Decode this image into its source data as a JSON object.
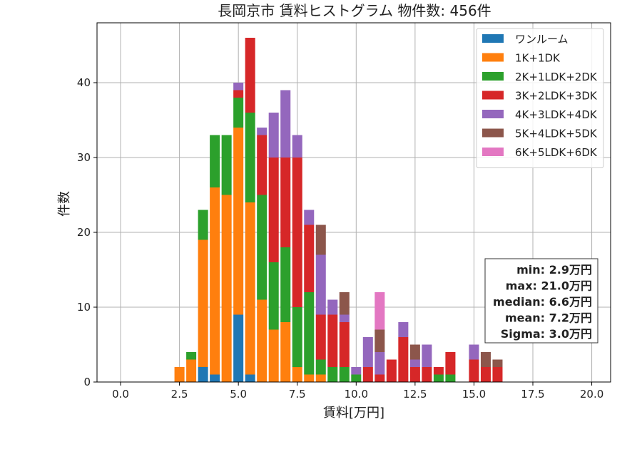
{
  "chart_data": {
    "type": "bar",
    "stacked": true,
    "title": "長岡京市 賃料ヒストグラム  物件数: 456件",
    "xlabel": "賃料[万円]",
    "ylabel": "件数",
    "xlim": [
      -1.0,
      20.8
    ],
    "ylim": [
      0,
      48
    ],
    "xticks": [
      "0.0",
      "2.5",
      "5.0",
      "7.5",
      "10.0",
      "12.5",
      "15.0",
      "17.5",
      "20.0"
    ],
    "xtick_values": [
      0,
      2.5,
      5,
      7.5,
      10,
      12.5,
      15,
      17.5,
      20
    ],
    "yticks": [
      "0",
      "10",
      "20",
      "30",
      "40"
    ],
    "ytick_values": [
      0,
      10,
      20,
      30,
      40
    ],
    "grid": true,
    "legend_position": "top-right",
    "bin_width": 0.5,
    "x": [
      2.5,
      3.0,
      3.5,
      4.0,
      4.5,
      5.0,
      5.5,
      6.0,
      6.5,
      7.0,
      7.5,
      8.0,
      8.5,
      9.0,
      9.5,
      10.0,
      10.5,
      11.0,
      11.5,
      12.0,
      12.5,
      13.0,
      13.5,
      14.0,
      14.5,
      15.0,
      15.5,
      16.0
    ],
    "series": [
      {
        "name": "ワンルーム",
        "color": "#1f77b4",
        "values": [
          0,
          0,
          2,
          1,
          0,
          9,
          1,
          0,
          0,
          0,
          0,
          0,
          0,
          0,
          0,
          0,
          0,
          0,
          0,
          0,
          0,
          0,
          0,
          0,
          0,
          0,
          0,
          0
        ]
      },
      {
        "name": "1K+1DK",
        "color": "#ff7f0e",
        "values": [
          2,
          3,
          17,
          25,
          25,
          25,
          23,
          11,
          7,
          8,
          2,
          1,
          1,
          0,
          0,
          0,
          0,
          0,
          0,
          0,
          0,
          0,
          0,
          0,
          0,
          0,
          0,
          0
        ]
      },
      {
        "name": "2K+1LDK+2DK",
        "color": "#2ca02c",
        "values": [
          0,
          1,
          4,
          7,
          8,
          4,
          12,
          14,
          9,
          10,
          8,
          11,
          2,
          2,
          2,
          1,
          0,
          0,
          0,
          0,
          0,
          0,
          1,
          1,
          0,
          0,
          0,
          0
        ]
      },
      {
        "name": "3K+2LDK+3DK",
        "color": "#d62728",
        "values": [
          0,
          0,
          0,
          0,
          0,
          1,
          10,
          8,
          14,
          12,
          20,
          9,
          6,
          7,
          6,
          0,
          2,
          1,
          3,
          6,
          2,
          2,
          1,
          3,
          0,
          3,
          2,
          2
        ]
      },
      {
        "name": "4K+3LDK+4DK",
        "color": "#9467bd",
        "values": [
          0,
          0,
          0,
          0,
          0,
          1,
          0,
          1,
          6,
          9,
          3,
          2,
          8,
          2,
          1,
          1,
          4,
          3,
          0,
          2,
          1,
          3,
          0,
          0,
          0,
          2,
          0,
          0
        ]
      },
      {
        "name": "5K+4LDK+5DK",
        "color": "#8c564b",
        "values": [
          0,
          0,
          0,
          0,
          0,
          0,
          0,
          0,
          0,
          0,
          0,
          0,
          4,
          0,
          3,
          0,
          0,
          3,
          0,
          0,
          2,
          0,
          0,
          0,
          0,
          0,
          2,
          1
        ]
      },
      {
        "name": "6K+5LDK+6DK",
        "color": "#e377c2",
        "values": [
          0,
          0,
          0,
          0,
          0,
          0,
          0,
          0,
          0,
          0,
          0,
          0,
          0,
          0,
          0,
          0,
          0,
          5,
          0,
          0,
          0,
          0,
          0,
          0,
          0,
          0,
          0,
          0
        ]
      }
    ],
    "stats": {
      "min": "min: 2.9万円",
      "max": "max: 21.0万円",
      "median": "median: 6.6万円",
      "mean": "mean: 7.2万円",
      "sigma": "Sigma: 3.0万円"
    }
  }
}
